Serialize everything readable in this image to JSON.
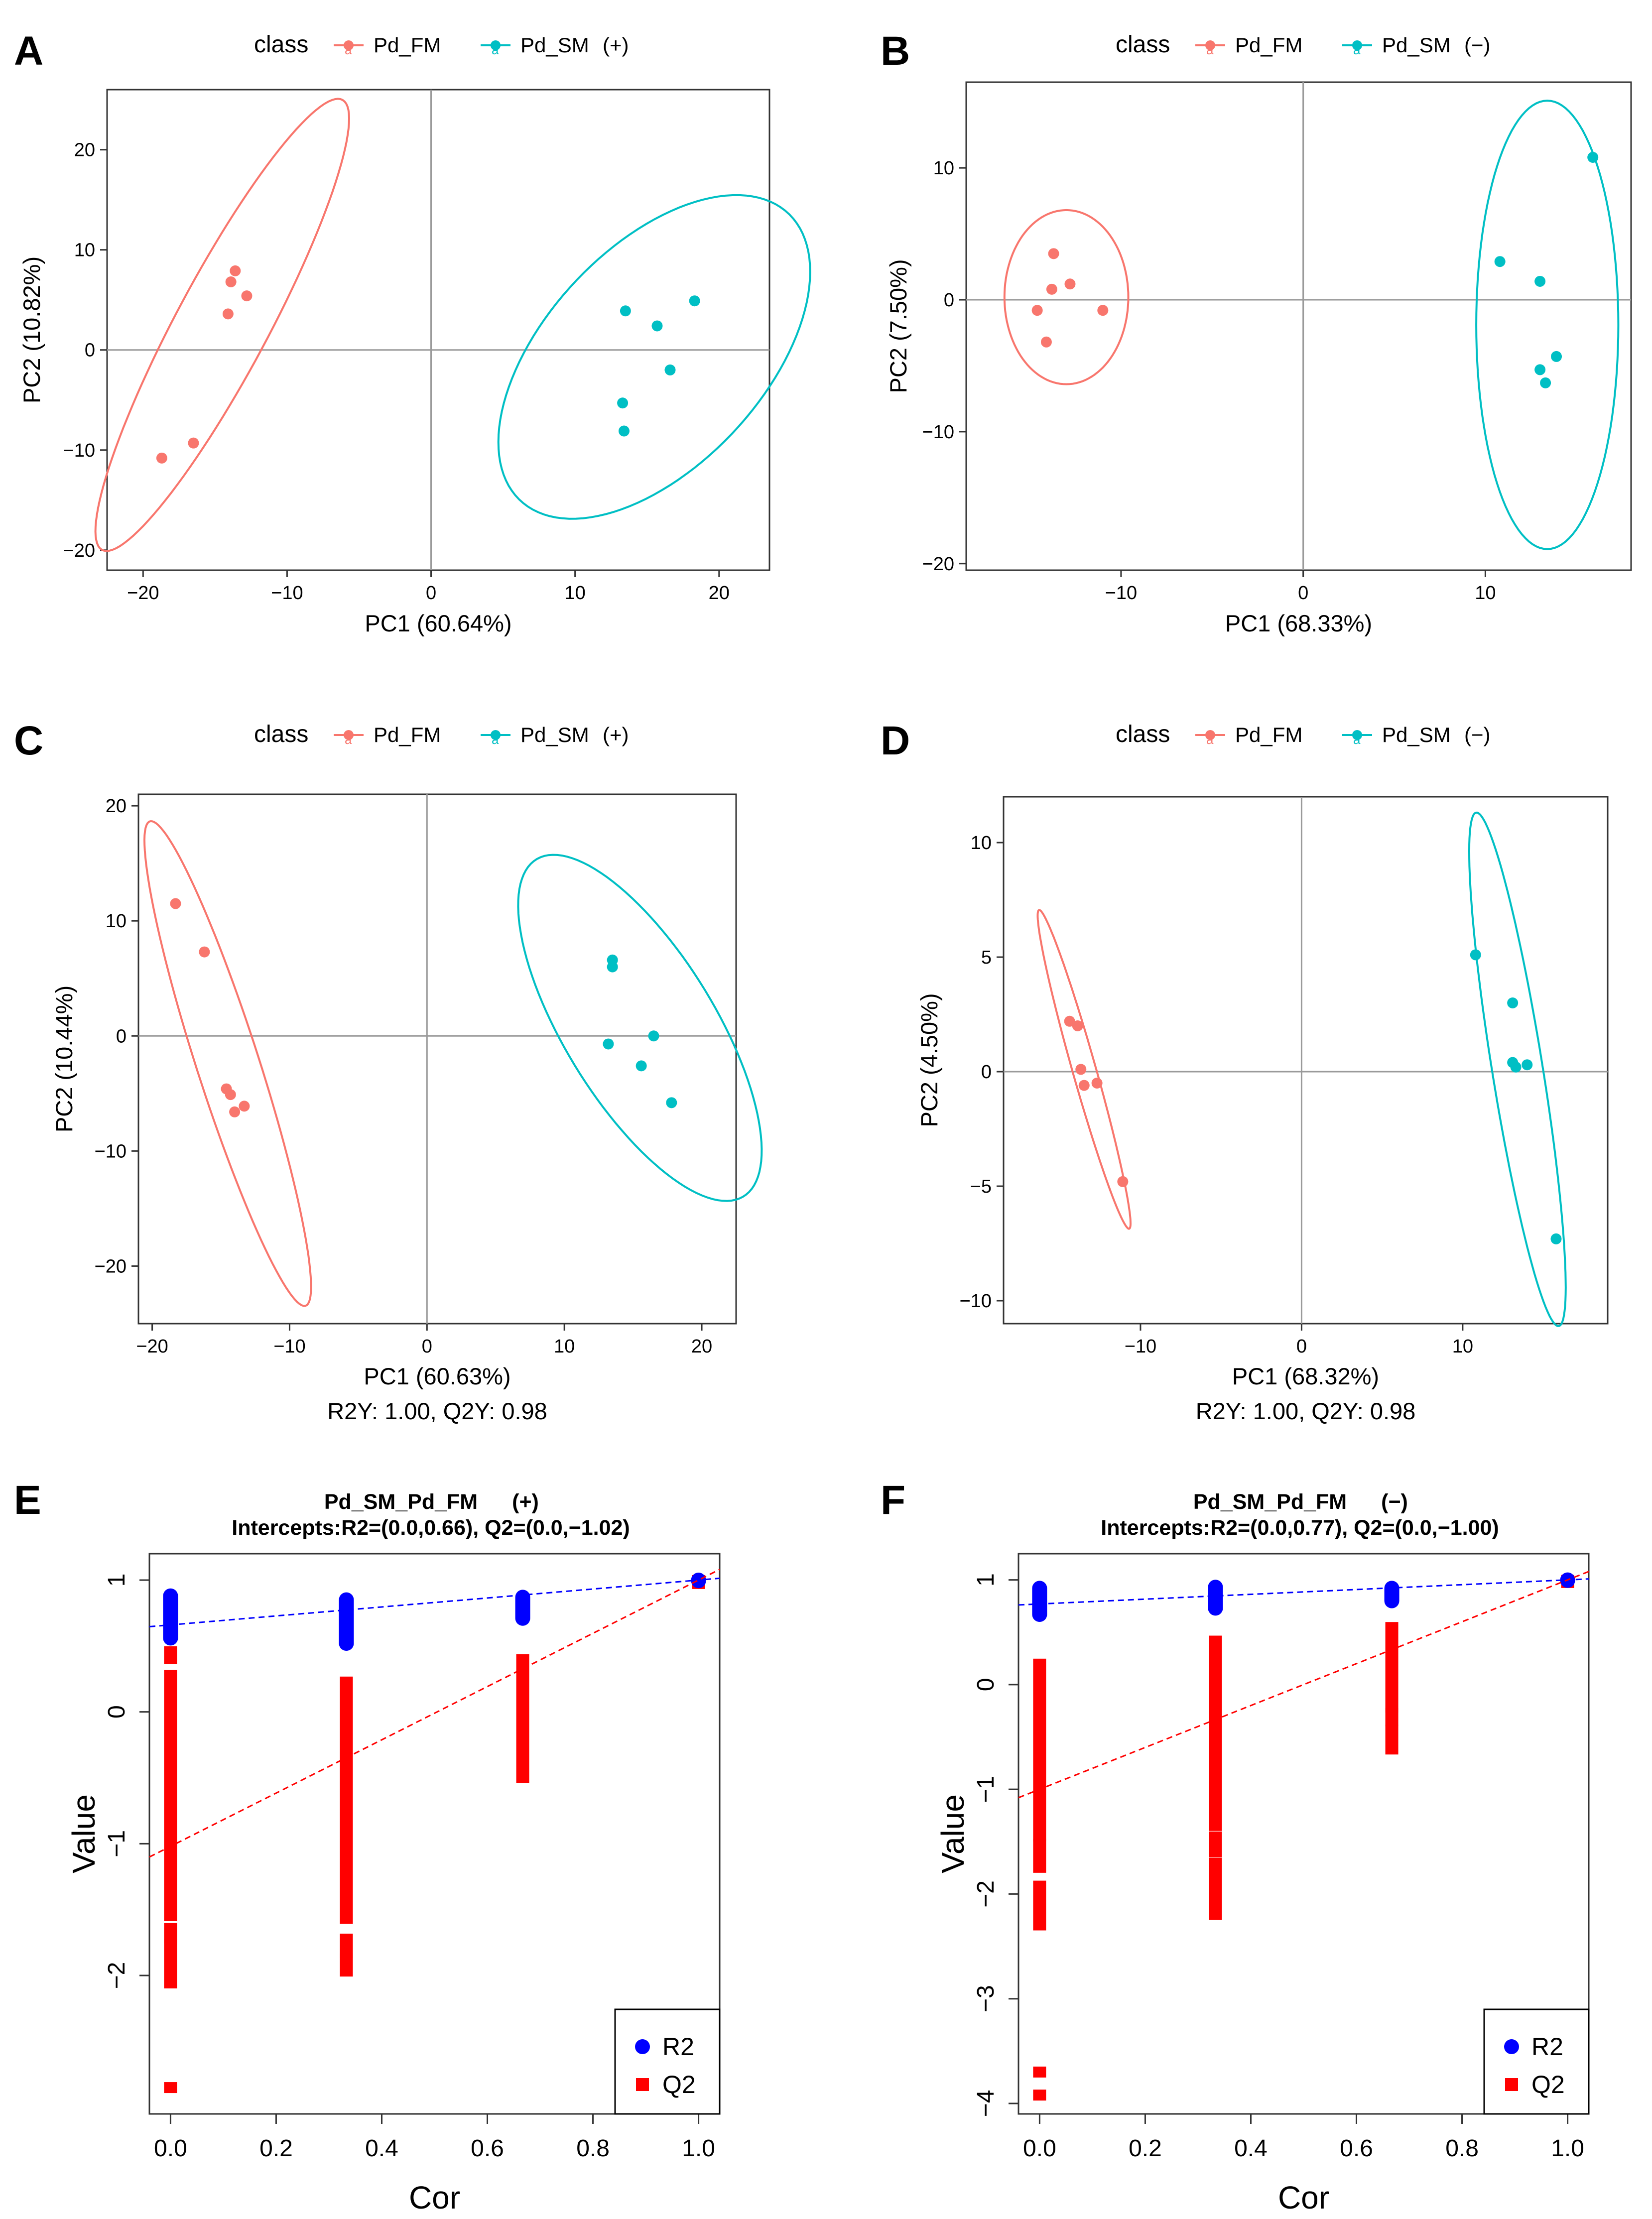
{
  "colors": {
    "fm": "#F8766D",
    "sm": "#00BFC4",
    "r2": "#0000FF",
    "q2": "#FF0000",
    "axis": "#333333",
    "zero": "#9a9a9a"
  },
  "chart_data": [
    {
      "id": "A",
      "label": "A",
      "type": "scatter",
      "legend_title": "class",
      "series_labels": [
        "Pd_FM",
        "Pd_SM"
      ],
      "mode_tag": "(+)",
      "xlabel": "PC1 (60.64%)",
      "ylabel": "PC2 (10.82%)",
      "note": "",
      "xlim": [
        -22.5,
        23.5
      ],
      "ylim": [
        -22,
        26
      ],
      "xticks": [
        -20,
        -10,
        0,
        10,
        20
      ],
      "yticks": [
        -20,
        -10,
        0,
        10,
        20
      ],
      "series": [
        {
          "name": "Pd_FM",
          "points": [
            [
              -18.7,
              -10.8
            ],
            [
              -16.5,
              -9.3
            ],
            [
              -14.1,
              3.6
            ],
            [
              -13.9,
              6.8
            ],
            [
              -13.6,
              7.9
            ],
            [
              -12.8,
              5.4
            ]
          ],
          "ellipse": {
            "cx": -14.5,
            "cy": 2.5,
            "semi_major": 24.0,
            "semi_minor": 3.4,
            "angle_deg": 70
          }
        },
        {
          "name": "Pd_SM",
          "points": [
            [
              13.3,
              -5.3
            ],
            [
              13.4,
              -8.1
            ],
            [
              13.5,
              3.9
            ],
            [
              15.7,
              2.4
            ],
            [
              16.6,
              -2.0
            ],
            [
              18.3,
              4.9
            ]
          ],
          "ellipse": {
            "cx": 15.5,
            "cy": -0.7,
            "semi_major": 17.5,
            "semi_minor": 8.5,
            "angle_deg": 64
          }
        }
      ]
    },
    {
      "id": "B",
      "label": "B",
      "type": "scatter",
      "legend_title": "class",
      "series_labels": [
        "Pd_FM",
        "Pd_SM"
      ],
      "mode_tag": "(−)",
      "xlabel": "PC1 (68.33%)",
      "ylabel": "PC2 (7.50%)",
      "note": "",
      "xlim": [
        -18.5,
        18
      ],
      "ylim": [
        -20.5,
        16.5
      ],
      "xticks": [
        -10,
        0,
        10
      ],
      "yticks": [
        -20,
        -10,
        0,
        10
      ],
      "series": [
        {
          "name": "Pd_FM",
          "points": [
            [
              -14.6,
              -0.8
            ],
            [
              -14.1,
              -3.2
            ],
            [
              -13.8,
              0.8
            ],
            [
              -13.7,
              3.5
            ],
            [
              -12.8,
              1.2
            ],
            [
              -11.0,
              -0.8
            ]
          ],
          "ellipse": {
            "cx": -13.0,
            "cy": 0.2,
            "semi_major": 6.6,
            "semi_minor": 3.4,
            "angle_deg": 90
          }
        },
        {
          "name": "Pd_SM",
          "points": [
            [
              10.8,
              2.9
            ],
            [
              13.0,
              1.4
            ],
            [
              13.0,
              -5.3
            ],
            [
              13.3,
              -6.3
            ],
            [
              13.9,
              -4.3
            ],
            [
              15.9,
              10.8
            ]
          ],
          "ellipse": {
            "cx": 13.4,
            "cy": -1.9,
            "semi_major": 17.0,
            "semi_minor": 3.9,
            "angle_deg": 90
          }
        }
      ]
    },
    {
      "id": "C",
      "label": "C",
      "type": "scatter",
      "legend_title": "class",
      "series_labels": [
        "Pd_FM",
        "Pd_SM"
      ],
      "mode_tag": "(+)",
      "xlabel": "PC1 (60.63%)",
      "ylabel": "PC2 (10.44%)",
      "note": "R2Y: 1.00, Q2Y: 0.98",
      "xlim": [
        -21,
        22.5
      ],
      "ylim": [
        -25,
        21
      ],
      "xticks": [
        -20,
        -10,
        0,
        10,
        20
      ],
      "yticks": [
        -20,
        -10,
        0,
        10,
        20
      ],
      "series": [
        {
          "name": "Pd_FM",
          "points": [
            [
              -18.3,
              11.5
            ],
            [
              -16.2,
              7.3
            ],
            [
              -14.6,
              -4.6
            ],
            [
              -14.3,
              -5.1
            ],
            [
              -14.0,
              -6.6
            ],
            [
              -13.3,
              -6.1
            ]
          ],
          "ellipse": {
            "cx": -14.5,
            "cy": -2.4,
            "semi_major": 21.8,
            "semi_minor": 2.3,
            "angle_deg": -75
          }
        },
        {
          "name": "Pd_SM",
          "points": [
            [
              13.2,
              -0.7
            ],
            [
              13.5,
              6.6
            ],
            [
              13.5,
              6.0
            ],
            [
              15.6,
              -2.6
            ],
            [
              16.5,
              0.0
            ],
            [
              17.8,
              -5.8
            ]
          ],
          "ellipse": {
            "cx": 15.5,
            "cy": 0.7,
            "semi_major": 16.5,
            "semi_minor": 5.7,
            "angle_deg": -64
          }
        }
      ]
    },
    {
      "id": "D",
      "label": "D",
      "type": "scatter",
      "legend_title": "class",
      "series_labels": [
        "Pd_FM",
        "Pd_SM"
      ],
      "mode_tag": "(−)",
      "xlabel": "PC1 (68.32%)",
      "ylabel": "PC2 (4.50%)",
      "note": "R2Y: 1.00, Q2Y: 0.98",
      "xlim": [
        -18.5,
        19
      ],
      "ylim": [
        -11,
        12
      ],
      "xticks": [
        -10,
        0,
        10
      ],
      "yticks": [
        -10,
        -5,
        0,
        5,
        10
      ],
      "series": [
        {
          "name": "Pd_FM",
          "points": [
            [
              -14.4,
              2.2
            ],
            [
              -13.9,
              2.0
            ],
            [
              -13.7,
              0.1
            ],
            [
              -13.5,
              -0.6
            ],
            [
              -12.7,
              -0.5
            ],
            [
              -11.1,
              -4.8
            ]
          ],
          "ellipse": {
            "cx": -13.5,
            "cy": 0.1,
            "semi_major": 7.5,
            "semi_minor": 0.7,
            "angle_deg": -68
          }
        },
        {
          "name": "Pd_SM",
          "points": [
            [
              10.8,
              5.1
            ],
            [
              13.1,
              3.0
            ],
            [
              13.1,
              0.4
            ],
            [
              13.3,
              0.2
            ],
            [
              14.0,
              0.3
            ],
            [
              15.8,
              -7.3
            ]
          ],
          "ellipse": {
            "cx": 13.4,
            "cy": 0.1,
            "semi_major": 11.5,
            "semi_minor": 1.55,
            "angle_deg": -77
          }
        }
      ]
    },
    {
      "id": "E",
      "label": "E",
      "type": "scatter",
      "title": "Pd_SM_Pd_FM",
      "mode_tag": "(+)",
      "subtitle": "Intercepts:R2=(0.0,0.66), Q2=(0.0,−1.02)",
      "xlabel": "Cor",
      "ylabel": "Value",
      "xlim": [
        -0.04,
        1.04
      ],
      "ylim": [
        -3.05,
        1.2
      ],
      "xticks": [
        0.0,
        0.2,
        0.4,
        0.6,
        0.8,
        1.0
      ],
      "xtick_labels": [
        "0.0",
        "0.2",
        "0.4",
        "0.6",
        "0.8",
        "1.0"
      ],
      "yticks": [
        -2,
        -1,
        0,
        1
      ],
      "ytick_labels": [
        "−2",
        "−1",
        "0",
        "1"
      ],
      "legend": [
        "R2",
        "Q2"
      ],
      "r2_groups": [
        {
          "x": 0.0,
          "min": 0.56,
          "max": 0.88
        },
        {
          "x": 0.333,
          "min": 0.52,
          "max": 0.85
        },
        {
          "x": 0.667,
          "min": 0.71,
          "max": 0.87
        },
        {
          "x": 1.0,
          "min": 0.995,
          "max": 1.0
        }
      ],
      "q2_groups": [
        {
          "x": 0.0,
          "segments": [
            [
              0.4,
              0.46
            ],
            [
              -1.55,
              0.28
            ],
            [
              -1.72,
              -1.64
            ],
            [
              -2.06,
              -1.76
            ]
          ],
          "outliers": [
            -2.85
          ]
        },
        {
          "x": 0.333,
          "segments": [
            [
              -1.57,
              0.23
            ],
            [
              -1.83,
              -1.72
            ],
            [
              -1.97,
              -1.87
            ]
          ],
          "outliers": []
        },
        {
          "x": 0.667,
          "segments": [
            [
              -0.5,
              0.4
            ]
          ],
          "outliers": []
        },
        {
          "x": 1.0,
          "segments": [
            [
              0.97,
              1.0
            ]
          ],
          "outliers": []
        }
      ],
      "r2_line": [
        0.66,
        1.0
      ],
      "q2_line": [
        -1.02,
        1.0
      ]
    },
    {
      "id": "F",
      "label": "F",
      "type": "scatter",
      "title": "Pd_SM_Pd_FM",
      "mode_tag": "(−)",
      "subtitle": "Intercepts:R2=(0.0,0.77), Q2=(0.0,−1.00)",
      "xlabel": "Cor",
      "ylabel": "Value",
      "xlim": [
        -0.04,
        1.04
      ],
      "ylim": [
        -4.1,
        1.25
      ],
      "xticks": [
        0.0,
        0.2,
        0.4,
        0.6,
        0.8,
        1.0
      ],
      "xtick_labels": [
        "0.0",
        "0.2",
        "0.4",
        "0.6",
        "0.8",
        "1.0"
      ],
      "yticks": [
        -4,
        -3,
        -2,
        -1,
        0,
        1
      ],
      "ytick_labels": [
        "−4",
        "−3",
        "−2",
        "−1",
        "0",
        "1"
      ],
      "legend": [
        "R2",
        "Q2"
      ],
      "r2_groups": [
        {
          "x": 0.0,
          "min": 0.67,
          "max": 0.92
        },
        {
          "x": 0.333,
          "min": 0.73,
          "max": 0.93
        },
        {
          "x": 0.667,
          "min": 0.8,
          "max": 0.92
        },
        {
          "x": 1.0,
          "min": 0.995,
          "max": 1.0
        }
      ],
      "q2_groups": [
        {
          "x": 0.0,
          "segments": [
            [
              -1.45,
              0.2
            ],
            [
              -1.75,
              -1.52
            ],
            [
              -2.3,
              -1.92
            ]
          ],
          "outliers": [
            -3.7,
            -3.92
          ]
        },
        {
          "x": 0.333,
          "segments": [
            [
              -1.35,
              0.42
            ],
            [
              -1.6,
              -1.45
            ],
            [
              -2.2,
              -1.7
            ]
          ],
          "outliers": []
        },
        {
          "x": 0.667,
          "segments": [
            [
              -0.22,
              0.55
            ],
            [
              -0.35,
              -0.27
            ],
            [
              -0.62,
              -0.43
            ]
          ],
          "outliers": []
        },
        {
          "x": 1.0,
          "segments": [
            [
              0.97,
              1.0
            ]
          ],
          "outliers": []
        }
      ],
      "r2_line": [
        0.77,
        1.0
      ],
      "q2_line": [
        -1.0,
        1.0
      ]
    }
  ]
}
